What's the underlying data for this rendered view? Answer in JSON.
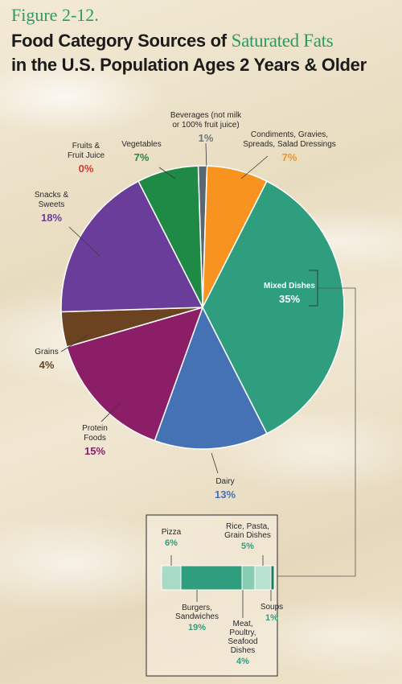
{
  "figure_label": "Figure 2-12.",
  "title": {
    "part1": "Food Category Sources of ",
    "highlight": "Saturated Fats",
    "line2": "in the U.S. Population Ages 2 Years & Older"
  },
  "chart_data": [
    {
      "type": "pie",
      "slices": [
        {
          "name": "Beverages (not milk or 100% fruit juice)",
          "lines": [
            "Beverages (not milk",
            "or 100% fruit juice)"
          ],
          "value": 1,
          "label": "1%",
          "color": "#5a6670",
          "text_color": "#6f7880"
        },
        {
          "name": "Condiments, Gravies, Spreads, Salad Dressings",
          "lines": [
            "Condiments, Gravies,",
            "Spreads, Salad Dressings"
          ],
          "value": 7,
          "label": "7%",
          "color": "#f7931e",
          "text_color": "#f7931e"
        },
        {
          "name": "Mixed Dishes",
          "lines": [
            "Mixed Dishes"
          ],
          "value": 35,
          "label": "35%",
          "color": "#2f9e7e",
          "text_color": "#ffffff"
        },
        {
          "name": "Dairy",
          "lines": [
            "Dairy"
          ],
          "value": 13,
          "label": "13%",
          "color": "#4472b4",
          "text_color": "#4472b4"
        },
        {
          "name": "Protein Foods",
          "lines": [
            "Protein",
            "Foods"
          ],
          "value": 15,
          "label": "15%",
          "color": "#8b1e66",
          "text_color": "#8b1e66"
        },
        {
          "name": "Grains",
          "lines": [
            "Grains"
          ],
          "value": 4,
          "label": "4%",
          "color": "#6b4321",
          "text_color": "#6b4321"
        },
        {
          "name": "Snacks & Sweets",
          "lines": [
            "Snacks &",
            "Sweets"
          ],
          "value": 18,
          "label": "18%",
          "color": "#6a3d9a",
          "text_color": "#6a3d9a"
        },
        {
          "name": "Vegetables",
          "lines": [
            "Vegetables"
          ],
          "value": 7,
          "label": "7%",
          "color": "#1f8a45",
          "text_color": "#1f8a45"
        },
        {
          "name": "Fruits & Fruit Juice",
          "lines": [
            "Fruits &",
            "Fruit Juice"
          ],
          "value": 0,
          "label": "0%",
          "color": "#e0322f",
          "text_color": "#e0322f"
        }
      ]
    },
    {
      "type": "bar",
      "title": "Mixed Dishes",
      "segments": [
        {
          "name": "Pizza",
          "lines": [
            "Pizza"
          ],
          "value": 6,
          "label": "6%",
          "color": "#a8dbc6",
          "text_color": "#2f9e7e"
        },
        {
          "name": "Burgers, Sandwiches",
          "lines": [
            "Burgers,",
            "Sandwiches"
          ],
          "value": 19,
          "label": "19%",
          "color": "#2f9e7e",
          "text_color": "#2f9e7e"
        },
        {
          "name": "Meat, Poultry, Seafood Dishes",
          "lines": [
            "Meat,",
            "Poultry,",
            "Seafood",
            "Dishes"
          ],
          "value": 4,
          "label": "4%",
          "color": "#86cdb1",
          "text_color": "#2f9e7e"
        },
        {
          "name": "Rice, Pasta, Grain Dishes",
          "lines": [
            "Rice, Pasta,",
            "Grain Dishes"
          ],
          "value": 5,
          "label": "5%",
          "color": "#b9e2d2",
          "text_color": "#2f9e7e"
        },
        {
          "name": "Soups",
          "lines": [
            "Soups"
          ],
          "value": 1,
          "label": "1%",
          "color": "#1f7a60",
          "text_color": "#2f9e7e"
        }
      ]
    }
  ]
}
